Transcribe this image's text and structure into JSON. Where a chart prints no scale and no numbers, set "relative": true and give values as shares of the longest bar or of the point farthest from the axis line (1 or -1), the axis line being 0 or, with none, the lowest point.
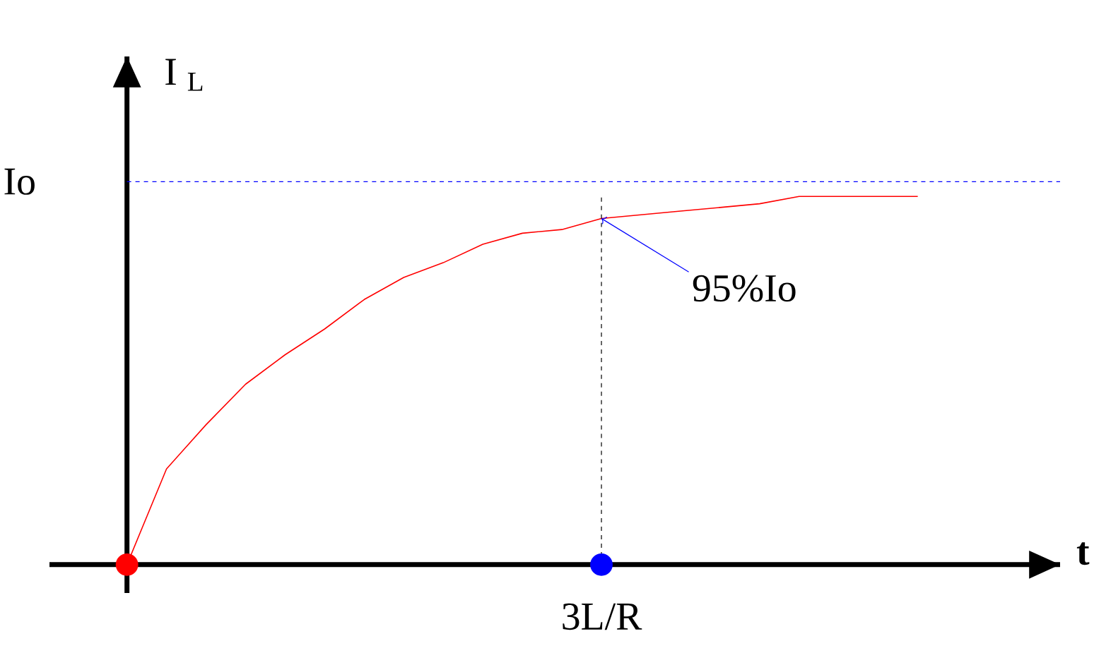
{
  "chart_data": {
    "type": "line",
    "relative": true,
    "xlabel": "**t**",
    "ylabel": "I $_{L}$",
    "categories": [
      null,
      null,
      null,
      null,
      null,
      null,
      null,
      null,
      null,
      null,
      null,
      null,
      null,
      null,
      null,
      null,
      null,
      null,
      null,
      null,
      null
    ],
    "series": [
      {
        "color": "#ff0000",
        "values": [
          0,
          0.26,
          0.38,
          0.49,
          0.57,
          0.64,
          0.72,
          0.78,
          0.82,
          0.87,
          0.9,
          0.91,
          0.94,
          0.95,
          0.96,
          0.97,
          0.98,
          1,
          1,
          1,
          1
        ]
      }
    ],
    "ref_lines": [
      {
        "axis": "y",
        "value": 1.04,
        "label": "Io",
        "color": "#0000ff",
        "line_style": "dashed"
      },
      {
        "axis": "x",
        "color": "#000000",
        "line_style": "dashed"
      }
    ],
    "annotations": [
      "95%Io",
      "3L/R"
    ]
  }
}
